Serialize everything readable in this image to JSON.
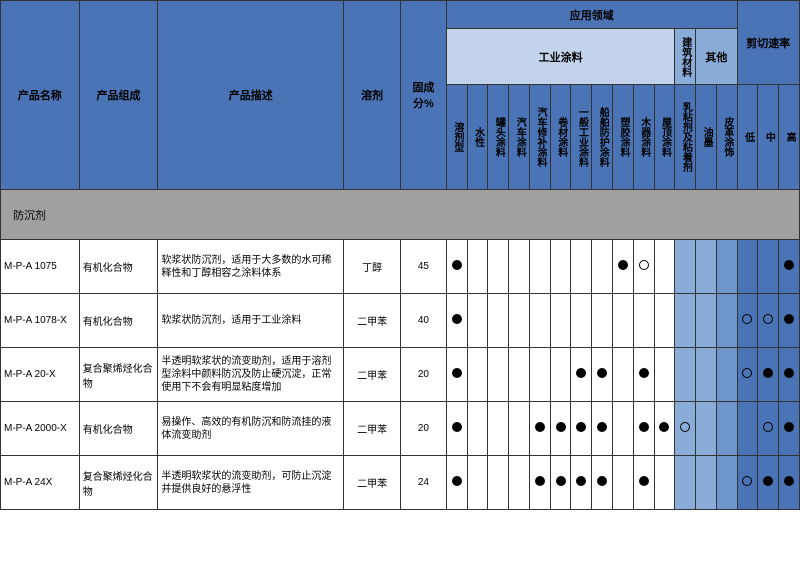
{
  "headers": {
    "name": "产品名称",
    "comp": "产品组成",
    "desc": "产品描述",
    "solv": "溶剂",
    "pct": "固成分%",
    "app_domain": "应用领域",
    "ind_coating": "工业涂料",
    "build_mat": "建筑材料",
    "other": "其他",
    "shear": "剪切速率",
    "cols": [
      "溶剂型",
      "水性",
      "罐头涂料",
      "汽车涂料",
      "汽车修补涂料",
      "卷材涂料",
      "一般工业涂料",
      "船舶防护涂料",
      "塑胶涂料",
      "木器涂料",
      "屋顶涂料",
      "乳粘剂及粘着剂",
      "油墨",
      "皮革涂饰",
      "低",
      "中",
      "高"
    ]
  },
  "category": "防沉剂",
  "rows": [
    {
      "name": "M-P-A 1075",
      "comp": "有机化合物",
      "desc": "软浆状防沉剂，适用于大多数的水可稀释性和丁醇相容之涂料体系",
      "solv": "丁醇",
      "pct": "45",
      "marks": [
        "f",
        "",
        "",
        "",
        "",
        "",
        "",
        "",
        "f",
        "o",
        "",
        "",
        "",
        "",
        "",
        "",
        "f"
      ]
    },
    {
      "name": "M-P-A 1078-X",
      "comp": "有机化合物",
      "desc": "软浆状防沉剂，适用于工业涂料",
      "solv": "二甲苯",
      "pct": "40",
      "marks": [
        "f",
        "",
        "",
        "",
        "",
        "",
        "",
        "",
        "",
        "",
        "",
        "",
        "",
        "",
        "o",
        "o",
        "f"
      ]
    },
    {
      "name": "M-P-A 20-X",
      "comp": "复合聚烯烃化合物",
      "desc": "半透明软浆状的流变助剂，适用于溶剂型涂料中颜料防沉及防止硬沉淀，正常使用下不会有明显粘度增加",
      "solv": "二甲苯",
      "pct": "20",
      "marks": [
        "f",
        "",
        "",
        "",
        "",
        "",
        "f",
        "f",
        "",
        "f",
        "",
        "",
        "",
        "",
        "o",
        "f",
        "f"
      ]
    },
    {
      "name": "M-P-A 2000-X",
      "comp": "有机化合物",
      "desc": "易操作、高效的有机防沉和防流挂的液体流变助剂",
      "solv": "二甲苯",
      "pct": "20",
      "marks": [
        "f",
        "",
        "",
        "",
        "f",
        "f",
        "f",
        "f",
        "",
        "f",
        "f",
        "o",
        "",
        "",
        "",
        "o",
        "f"
      ]
    },
    {
      "name": "M-P-A 24X",
      "comp": "复合聚烯烃化合物",
      "desc": "半透明软浆状的流变助剂，可防止沉淀并提供良好的悬浮性",
      "solv": "二甲苯",
      "pct": "24",
      "marks": [
        "f",
        "",
        "",
        "",
        "f",
        "f",
        "f",
        "f",
        "",
        "f",
        "",
        "",
        "",
        "",
        "o",
        "f",
        "f"
      ]
    }
  ],
  "col_shades": [
    "",
    "",
    "",
    "",
    "",
    "",
    "",
    "",
    "",
    "",
    "",
    "col-shade1",
    "col-shade1",
    "col-shade2",
    "col-shade3",
    "col-shade3",
    "col-shade3"
  ]
}
